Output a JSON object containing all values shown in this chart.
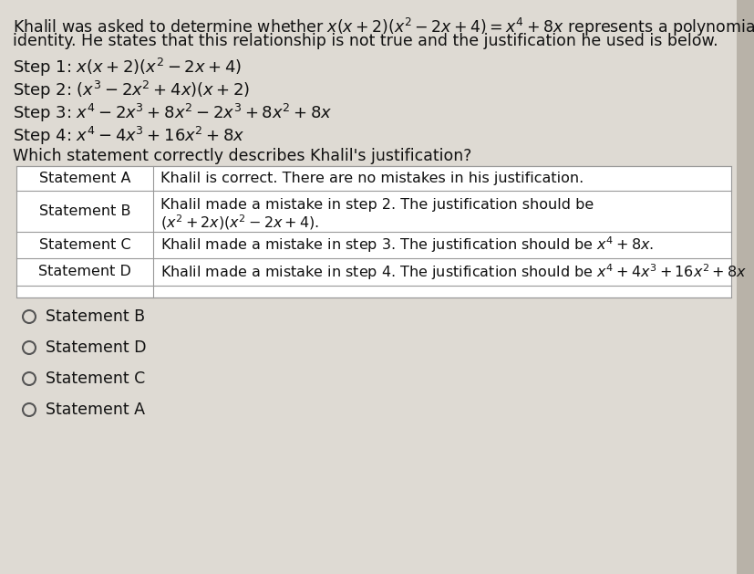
{
  "bg_color": "#cdc8be",
  "content_bg": "#dedad3",
  "right_strip_color": "#b8b2a8",
  "text_color": "#111111",
  "table_bg": "#ffffff",
  "table_border": "#999999",
  "title_line1": "Khalil was asked to determine whether $x(x+2)(x^2-2x+4)=x^4+8x$ represents a polynomial",
  "title_line2": "identity. He states that this relationship is not true and the justification he used is below.",
  "step1": "Step 1: $x(x+2)(x^2-2x+4)$",
  "step2": "Step 2: $(x^3-2x^2+4x)(x+2)$",
  "step3": "Step 3: $x^4-2x^3+8x^2-2x^3+8x^2+8x$",
  "step4": "Step 4: $x^4-4x^3+16x^2+8x$",
  "question": "Which statement correctly describes Khalil's justification?",
  "stmt_labels": [
    "Statement A",
    "Statement B",
    "Statement C",
    "Statement D"
  ],
  "stmt_content_A": "Khalil is correct. There are no mistakes in his justification.",
  "stmt_content_B1": "Khalil made a mistake in step 2. The justification should be",
  "stmt_content_B2": "$(x^2+2x)(x^2-2x+4)$.",
  "stmt_content_C": "Khalil made a mistake in step 3. The justification should be $x^4+8x$.",
  "stmt_content_D": "Khalil made a mistake in step 4. The justification should be $x^4+4x^3+16x^2+8x$",
  "radio_options": [
    "Statement B",
    "Statement D",
    "Statement C",
    "Statement A"
  ],
  "fs_title": 12.5,
  "fs_step": 13.0,
  "fs_table": 11.5,
  "fs_radio": 12.5
}
